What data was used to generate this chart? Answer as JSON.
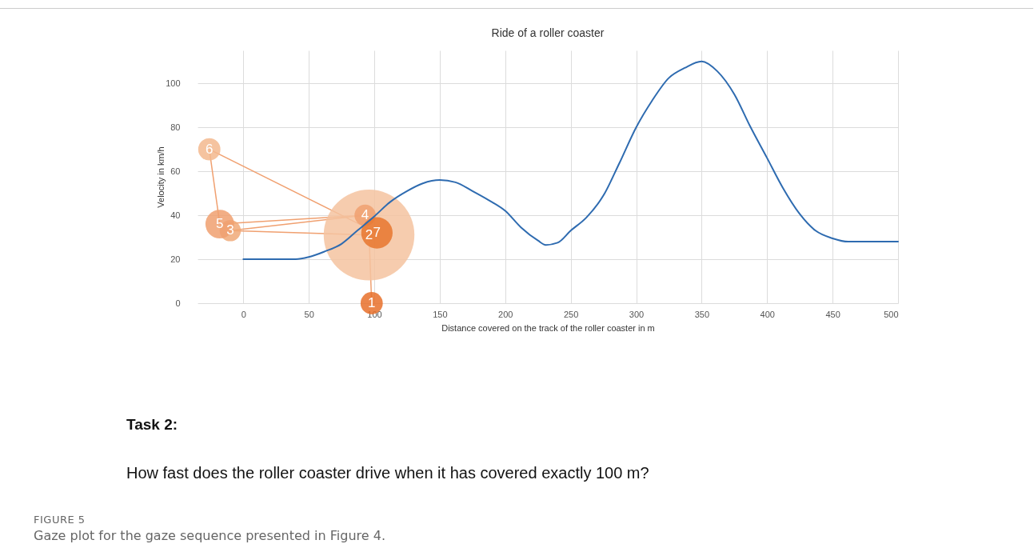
{
  "chart_data": {
    "type": "line",
    "title": "Ride of a roller coaster",
    "xlabel": "Distance covered on the track of the roller coaster in m",
    "ylabel": "Velocity in km/h",
    "xlim": [
      -35,
      500
    ],
    "xticks": [
      0,
      50,
      100,
      150,
      200,
      250,
      300,
      350,
      400,
      450,
      500
    ],
    "ylim": [
      0,
      115
    ],
    "yticks": [
      0,
      20,
      40,
      60,
      80,
      100
    ],
    "grid": true,
    "marker": "none",
    "line_style": "solid",
    "annotations": [
      "Task 2:",
      "How fast does the roller coaster drive when it has covered exactly 100 m?",
      "FIGURE 5",
      "Gaze plot for the gaze sequence presented in Figure 4.",
      {
        "text": "1",
        "x": 98,
        "y": 0
      },
      {
        "text": "2",
        "x": 96,
        "y": 31
      },
      {
        "text": "3",
        "x": -10,
        "y": 33
      },
      {
        "text": "4",
        "x": 93,
        "y": 40
      },
      {
        "text": "5",
        "x": -18,
        "y": 36
      },
      {
        "text": "6",
        "x": -26,
        "y": 70
      },
      {
        "text": "7",
        "x": 102,
        "y": 32
      }
    ],
    "series": [
      {
        "type": "line",
        "color": "#2e6bb0",
        "x": [
          0,
          40,
          50,
          62,
          75,
          87,
          100,
          112,
          125,
          137,
          150,
          162,
          175,
          187,
          200,
          212,
          225,
          231,
          240,
          250,
          262,
          275,
          287,
          300,
          312,
          325,
          337,
          350,
          362,
          375,
          387,
          400,
          412,
          425,
          437,
          450,
          462,
          475,
          500
        ],
        "values": [
          20,
          20,
          21,
          23.5,
          27,
          33,
          39.5,
          46,
          51,
          54.5,
          56,
          55,
          51,
          47,
          42,
          34.5,
          28.5,
          26.5,
          27.5,
          33,
          39,
          49,
          63.5,
          80,
          92,
          102.5,
          107,
          110,
          105.5,
          95,
          80.5,
          66,
          52.5,
          40.5,
          33,
          29.5,
          28,
          28,
          28
        ]
      },
      {
        "type": "bubble",
        "color": "#f0a070",
        "line_style": "solid",
        "marker": "circle",
        "x": [
          98,
          96,
          -10,
          93,
          -18,
          -26,
          102
        ],
        "values": [
          0,
          31,
          33,
          40,
          36,
          70,
          32
        ],
        "sizes": [
          0.06,
          1,
          0.055,
          0.055,
          0.1,
          0.06,
          0.12
        ],
        "colors": [
          "#e8702a",
          "#f5c3a0",
          "#f0a978",
          "#f0a070",
          "#f0a070",
          "#f3b88e",
          "#e8762e"
        ]
      }
    ]
  }
}
